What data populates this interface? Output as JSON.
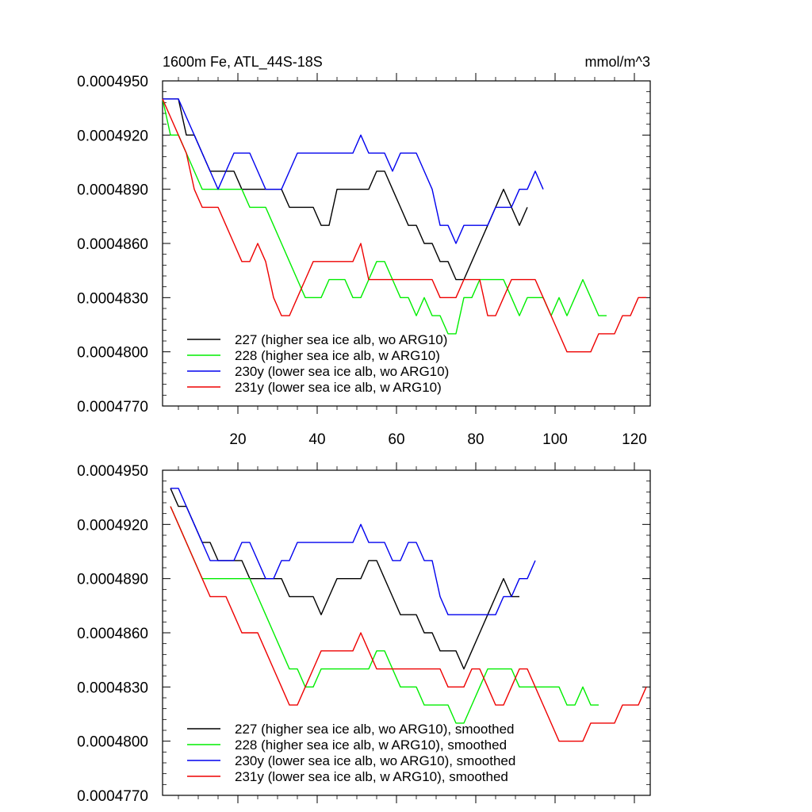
{
  "chart_data": [
    {
      "type": "line",
      "title": "1600m Fe, ATL_44S-18S",
      "units": "mmol/m^3",
      "xlim": [
        1,
        124
      ],
      "ylim": [
        0.000477,
        0.000495
      ],
      "xticks": [
        20,
        40,
        60,
        80,
        100,
        120
      ],
      "xtick_labels": [
        "20",
        "40",
        "60",
        "80",
        "100",
        "120"
      ],
      "yticks": [
        0.000477,
        0.00048,
        0.000483,
        0.000486,
        0.000489,
        0.000492,
        0.000495
      ],
      "ytick_labels": [
        "0.0004770",
        "0.0004800",
        "0.0004830",
        "0.0004860",
        "0.0004890",
        "0.0004920",
        "0.0004950"
      ],
      "legend_position": "bottom-left",
      "series": [
        {
          "name": "227 (higher sea ice alb, wo ARG10)",
          "color": "#000000",
          "x": [
            1,
            3,
            5,
            7,
            9,
            11,
            13,
            15,
            17,
            19,
            21,
            23,
            25,
            27,
            29,
            31,
            33,
            35,
            37,
            39,
            41,
            43,
            45,
            47,
            49,
            51,
            53,
            55,
            57,
            59,
            61,
            63,
            65,
            67,
            69,
            71,
            73,
            75,
            77,
            79,
            81,
            83,
            85,
            87,
            89,
            91,
            93
          ],
          "values": [
            0.000494,
            0.000494,
            0.000494,
            0.000492,
            0.000492,
            0.000491,
            0.00049,
            0.00049,
            0.00049,
            0.00049,
            0.000489,
            0.000489,
            0.000489,
            0.000489,
            0.000489,
            0.000489,
            0.000488,
            0.000488,
            0.000488,
            0.000488,
            0.000487,
            0.000487,
            0.000489,
            0.000489,
            0.000489,
            0.000489,
            0.000489,
            0.00049,
            0.00049,
            0.000489,
            0.000488,
            0.000487,
            0.000487,
            0.000486,
            0.000486,
            0.000485,
            0.000485,
            0.000484,
            0.000484,
            0.000485,
            0.000486,
            0.000487,
            0.000488,
            0.000489,
            0.000488,
            0.000487,
            0.000488
          ]
        },
        {
          "name": "228 (higher sea ice alb, w ARG10)",
          "color": "#00ee00",
          "x": [
            1,
            3,
            5,
            7,
            9,
            11,
            13,
            15,
            17,
            19,
            21,
            23,
            25,
            27,
            29,
            31,
            33,
            35,
            37,
            39,
            41,
            43,
            45,
            47,
            49,
            51,
            53,
            55,
            57,
            59,
            61,
            63,
            65,
            67,
            69,
            71,
            73,
            75,
            77,
            79,
            81,
            83,
            85,
            87,
            89,
            91,
            93,
            95,
            97,
            99,
            101,
            103,
            105,
            107,
            109,
            111,
            113
          ],
          "values": [
            0.000494,
            0.000492,
            0.000492,
            0.000491,
            0.00049,
            0.000489,
            0.000489,
            0.000489,
            0.000489,
            0.000489,
            0.000489,
            0.000488,
            0.000488,
            0.000488,
            0.000487,
            0.000486,
            0.000485,
            0.000484,
            0.000483,
            0.000483,
            0.000483,
            0.000484,
            0.000484,
            0.000484,
            0.000483,
            0.000483,
            0.000484,
            0.000485,
            0.000485,
            0.000484,
            0.000483,
            0.000483,
            0.000482,
            0.000483,
            0.000482,
            0.000482,
            0.000481,
            0.000481,
            0.000483,
            0.000483,
            0.000484,
            0.000484,
            0.000484,
            0.000484,
            0.000483,
            0.000482,
            0.000483,
            0.000483,
            0.000483,
            0.000482,
            0.000483,
            0.000482,
            0.000483,
            0.000484,
            0.000483,
            0.000482,
            0.000482
          ]
        },
        {
          "name": "230y (lower sea ice alb, wo ARG10)",
          "color": "#0000ee",
          "x": [
            1,
            3,
            5,
            7,
            9,
            11,
            13,
            15,
            17,
            19,
            21,
            23,
            25,
            27,
            29,
            31,
            33,
            35,
            37,
            39,
            41,
            43,
            45,
            47,
            49,
            51,
            53,
            55,
            57,
            59,
            61,
            63,
            65,
            67,
            69,
            71,
            73,
            75,
            77,
            79,
            81,
            83,
            85,
            87,
            89,
            91,
            93,
            95,
            97
          ],
          "values": [
            0.000494,
            0.000494,
            0.000494,
            0.000493,
            0.000492,
            0.000491,
            0.00049,
            0.000489,
            0.00049,
            0.000491,
            0.000491,
            0.000491,
            0.00049,
            0.000489,
            0.000489,
            0.000489,
            0.00049,
            0.000491,
            0.000491,
            0.000491,
            0.000491,
            0.000491,
            0.000491,
            0.000491,
            0.000491,
            0.000492,
            0.000491,
            0.000491,
            0.000491,
            0.00049,
            0.000491,
            0.000491,
            0.000491,
            0.00049,
            0.000489,
            0.000487,
            0.000487,
            0.000486,
            0.000487,
            0.000487,
            0.000487,
            0.000487,
            0.000488,
            0.000488,
            0.000488,
            0.000489,
            0.000489,
            0.00049,
            0.000489
          ]
        },
        {
          "name": "231y (lower sea ice alb, w ARG10)",
          "color": "#ee0000",
          "x": [
            1,
            3,
            5,
            7,
            9,
            11,
            13,
            15,
            17,
            19,
            21,
            23,
            25,
            27,
            29,
            31,
            33,
            35,
            37,
            39,
            41,
            43,
            45,
            47,
            49,
            51,
            53,
            55,
            57,
            59,
            61,
            63,
            65,
            67,
            69,
            71,
            73,
            75,
            77,
            79,
            81,
            83,
            85,
            87,
            89,
            91,
            93,
            95,
            97,
            99,
            101,
            103,
            105,
            107,
            109,
            111,
            113,
            115,
            117,
            119,
            121,
            123
          ],
          "values": [
            0.000494,
            0.000493,
            0.000492,
            0.000491,
            0.000489,
            0.000488,
            0.000488,
            0.000488,
            0.000487,
            0.000486,
            0.000485,
            0.000485,
            0.000486,
            0.000485,
            0.000483,
            0.000482,
            0.000482,
            0.000483,
            0.000484,
            0.000485,
            0.000485,
            0.000485,
            0.000485,
            0.000485,
            0.000485,
            0.000486,
            0.000484,
            0.000484,
            0.000484,
            0.000484,
            0.000484,
            0.000484,
            0.000484,
            0.000484,
            0.000484,
            0.000483,
            0.000483,
            0.000483,
            0.000484,
            0.000484,
            0.000484,
            0.000482,
            0.000482,
            0.000483,
            0.000484,
            0.000484,
            0.000484,
            0.000484,
            0.000483,
            0.000482,
            0.000481,
            0.00048,
            0.00048,
            0.00048,
            0.00048,
            0.000481,
            0.000481,
            0.000481,
            0.000482,
            0.000482,
            0.000483,
            0.000483
          ]
        }
      ]
    },
    {
      "type": "line",
      "title": "",
      "units": "",
      "xlim": [
        1,
        124
      ],
      "ylim": [
        0.000477,
        0.000495
      ],
      "xticks": [
        20,
        40,
        60,
        80,
        100,
        120
      ],
      "xtick_labels": [],
      "yticks": [
        0.000477,
        0.00048,
        0.000483,
        0.000486,
        0.000489,
        0.000492,
        0.000495
      ],
      "ytick_labels": [
        "0.0004770",
        "0.0004800",
        "0.0004830",
        "0.0004860",
        "0.0004890",
        "0.0004920",
        "0.0004950"
      ],
      "legend_position": "bottom-left",
      "series": [
        {
          "name": "227 (higher sea ice alb, wo ARG10), smoothed",
          "color": "#000000",
          "x": [
            3,
            5,
            7,
            9,
            11,
            13,
            15,
            17,
            19,
            21,
            23,
            25,
            27,
            29,
            31,
            33,
            35,
            37,
            39,
            41,
            43,
            45,
            47,
            49,
            51,
            53,
            55,
            57,
            59,
            61,
            63,
            65,
            67,
            69,
            71,
            73,
            75,
            77,
            79,
            81,
            83,
            85,
            87,
            89,
            91
          ],
          "values": [
            0.000494,
            0.000493,
            0.000493,
            0.000492,
            0.000491,
            0.000491,
            0.00049,
            0.00049,
            0.00049,
            0.00049,
            0.000489,
            0.000489,
            0.000489,
            0.000489,
            0.000489,
            0.000488,
            0.000488,
            0.000488,
            0.000488,
            0.000487,
            0.000488,
            0.000489,
            0.000489,
            0.000489,
            0.000489,
            0.00049,
            0.00049,
            0.000489,
            0.000488,
            0.000487,
            0.000487,
            0.000487,
            0.000486,
            0.000486,
            0.000485,
            0.000485,
            0.000485,
            0.000484,
            0.000485,
            0.000486,
            0.000487,
            0.000488,
            0.000489,
            0.000488,
            0.000488
          ]
        },
        {
          "name": "228 (higher sea ice alb, w ARG10), smoothed",
          "color": "#00ee00",
          "x": [
            3,
            5,
            7,
            9,
            11,
            13,
            15,
            17,
            19,
            21,
            23,
            25,
            27,
            29,
            31,
            33,
            35,
            37,
            39,
            41,
            43,
            45,
            47,
            49,
            51,
            53,
            55,
            57,
            59,
            61,
            63,
            65,
            67,
            69,
            71,
            73,
            75,
            77,
            79,
            81,
            83,
            85,
            87,
            89,
            91,
            93,
            95,
            97,
            99,
            101,
            103,
            105,
            107,
            109,
            111
          ],
          "values": [
            0.000493,
            0.000492,
            0.000491,
            0.00049,
            0.000489,
            0.000489,
            0.000489,
            0.000489,
            0.000489,
            0.000489,
            0.000489,
            0.000488,
            0.000487,
            0.000486,
            0.000485,
            0.000484,
            0.000484,
            0.000483,
            0.000483,
            0.000484,
            0.000484,
            0.000484,
            0.000484,
            0.000484,
            0.000484,
            0.000484,
            0.000485,
            0.000485,
            0.000484,
            0.000483,
            0.000483,
            0.000483,
            0.000482,
            0.000482,
            0.000482,
            0.000482,
            0.000481,
            0.000481,
            0.000482,
            0.000483,
            0.000484,
            0.000484,
            0.000484,
            0.000484,
            0.000483,
            0.000483,
            0.000483,
            0.000483,
            0.000483,
            0.000483,
            0.000482,
            0.000482,
            0.000483,
            0.000482,
            0.000482
          ]
        },
        {
          "name": "230y (lower sea ice alb, wo ARG10), smoothed",
          "color": "#0000ee",
          "x": [
            3,
            5,
            7,
            9,
            11,
            13,
            15,
            17,
            19,
            21,
            23,
            25,
            27,
            29,
            31,
            33,
            35,
            37,
            39,
            41,
            43,
            45,
            47,
            49,
            51,
            53,
            55,
            57,
            59,
            61,
            63,
            65,
            67,
            69,
            71,
            73,
            75,
            77,
            79,
            81,
            83,
            85,
            87,
            89,
            91,
            93,
            95
          ],
          "values": [
            0.000494,
            0.000494,
            0.000493,
            0.000492,
            0.000491,
            0.00049,
            0.00049,
            0.00049,
            0.00049,
            0.000491,
            0.000491,
            0.00049,
            0.000489,
            0.000489,
            0.00049,
            0.00049,
            0.000491,
            0.000491,
            0.000491,
            0.000491,
            0.000491,
            0.000491,
            0.000491,
            0.000491,
            0.000492,
            0.000491,
            0.000491,
            0.000491,
            0.00049,
            0.00049,
            0.000491,
            0.000491,
            0.00049,
            0.00049,
            0.000488,
            0.000487,
            0.000487,
            0.000487,
            0.000487,
            0.000487,
            0.000487,
            0.000487,
            0.000488,
            0.000488,
            0.000489,
            0.000489,
            0.00049
          ]
        },
        {
          "name": "231y (lower sea ice alb, w ARG10), smoothed",
          "color": "#ee0000",
          "x": [
            3,
            5,
            7,
            9,
            11,
            13,
            15,
            17,
            19,
            21,
            23,
            25,
            27,
            29,
            31,
            33,
            35,
            37,
            39,
            41,
            43,
            45,
            47,
            49,
            51,
            53,
            55,
            57,
            59,
            61,
            63,
            65,
            67,
            69,
            71,
            73,
            75,
            77,
            79,
            81,
            83,
            85,
            87,
            89,
            91,
            93,
            95,
            97,
            99,
            101,
            103,
            105,
            107,
            109,
            111,
            113,
            115,
            117,
            119,
            121,
            123
          ],
          "values": [
            0.000493,
            0.000492,
            0.000491,
            0.00049,
            0.000489,
            0.000488,
            0.000488,
            0.000488,
            0.000487,
            0.000486,
            0.000486,
            0.000486,
            0.000485,
            0.000484,
            0.000483,
            0.000482,
            0.000482,
            0.000483,
            0.000484,
            0.000485,
            0.000485,
            0.000485,
            0.000485,
            0.000485,
            0.000486,
            0.000485,
            0.000484,
            0.000484,
            0.000484,
            0.000484,
            0.000484,
            0.000484,
            0.000484,
            0.000484,
            0.000484,
            0.000483,
            0.000483,
            0.000483,
            0.000484,
            0.000484,
            0.000483,
            0.000482,
            0.000482,
            0.000483,
            0.000484,
            0.000484,
            0.000483,
            0.000482,
            0.000481,
            0.00048,
            0.00048,
            0.00048,
            0.00048,
            0.000481,
            0.000481,
            0.000481,
            0.000481,
            0.000482,
            0.000482,
            0.000482,
            0.000483
          ]
        }
      ]
    }
  ]
}
